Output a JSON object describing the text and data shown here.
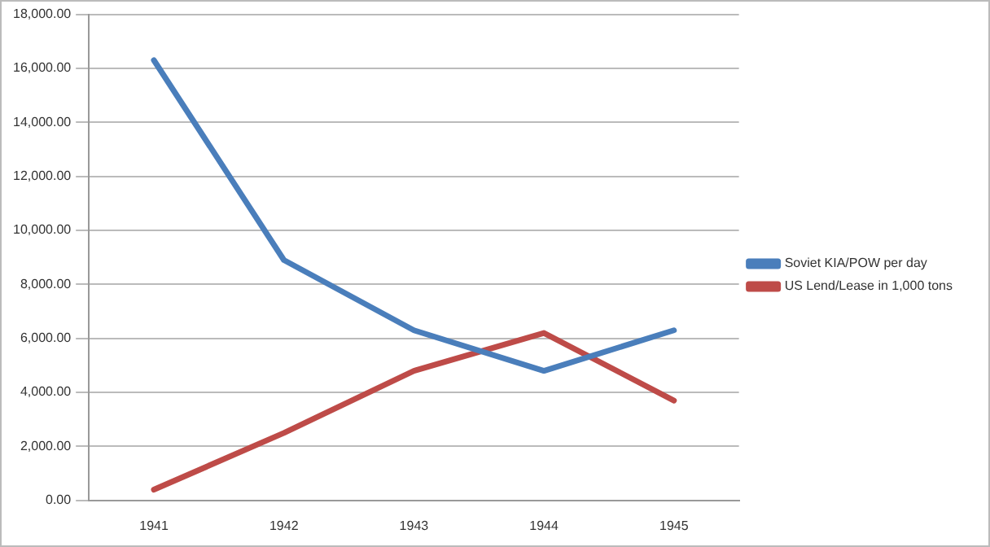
{
  "chart_data": {
    "type": "line",
    "categories": [
      "1941",
      "1942",
      "1943",
      "1944",
      "1945"
    ],
    "series": [
      {
        "name": "Soviet KIA/POW per day",
        "color": "#4a7ebb",
        "values": [
          16300,
          8900,
          6300,
          4800,
          6300
        ]
      },
      {
        "name": "US Lend/Lease in 1,000 tons",
        "color": "#be4b48",
        "values": [
          400,
          2500,
          4800,
          6200,
          3700
        ]
      }
    ],
    "ylim": [
      0,
      18000
    ],
    "yticks": [
      {
        "value": 0,
        "label": "0.00"
      },
      {
        "value": 2000,
        "label": "2,000.00"
      },
      {
        "value": 4000,
        "label": "4,000.00"
      },
      {
        "value": 6000,
        "label": "6,000.00"
      },
      {
        "value": 8000,
        "label": "8,000.00"
      },
      {
        "value": 10000,
        "label": "10,000.00"
      },
      {
        "value": 12000,
        "label": "12,000.00"
      },
      {
        "value": 14000,
        "label": "14,000.00"
      },
      {
        "value": 16000,
        "label": "16,000.00"
      },
      {
        "value": 18000,
        "label": "18,000.00"
      }
    ],
    "grid": "y",
    "legend": "right",
    "marker": "none",
    "line_style": "solid"
  }
}
